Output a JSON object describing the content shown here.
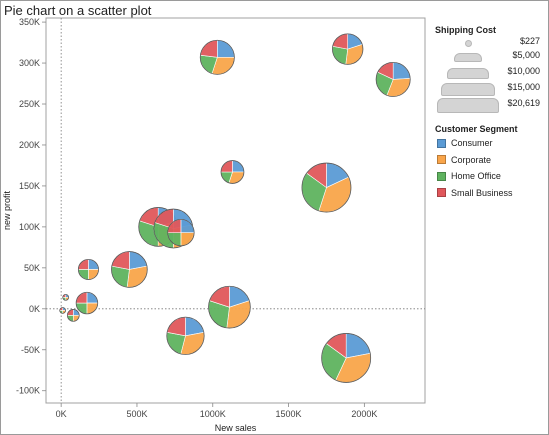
{
  "title": "Pie chart on a scatter plot",
  "chart_data": {
    "type": "scatter",
    "subtype": "pie-markers",
    "xlabel": "New sales",
    "ylabel": "new profit",
    "xlim": [
      -100000,
      2400000
    ],
    "ylim": [
      -115000,
      355000
    ],
    "xticks": [
      0,
      500000,
      1000000,
      1500000,
      2000000
    ],
    "xtick_labels": [
      "0K",
      "500K",
      "1000K",
      "1500K",
      "2000K"
    ],
    "yticks": [
      -100000,
      -50000,
      0,
      50000,
      100000,
      150000,
      200000,
      250000,
      300000,
      350000
    ],
    "ytick_labels": [
      "-100K",
      "-50K",
      "0K",
      "50K",
      "100K",
      "150K",
      "200K",
      "250K",
      "300K",
      "350K"
    ],
    "reference_lines": {
      "x": 0,
      "y": 0,
      "style": "dotted"
    },
    "grid": false,
    "slice_order": [
      "Consumer",
      "Corporate",
      "Home Office",
      "Small Business"
    ],
    "points": [
      {
        "x": 1030000,
        "y": 307000,
        "size": 10000,
        "shares": [
          0.25,
          0.3,
          0.22,
          0.23
        ]
      },
      {
        "x": 1890000,
        "y": 317000,
        "size": 8000,
        "shares": [
          0.2,
          0.32,
          0.26,
          0.22
        ]
      },
      {
        "x": 2190000,
        "y": 280000,
        "size": 10000,
        "shares": [
          0.24,
          0.32,
          0.26,
          0.18
        ]
      },
      {
        "x": 1130000,
        "y": 167000,
        "size": 4500,
        "shares": [
          0.25,
          0.3,
          0.2,
          0.25
        ]
      },
      {
        "x": 1750000,
        "y": 148000,
        "size": 20619,
        "shares": [
          0.18,
          0.37,
          0.3,
          0.15
        ]
      },
      {
        "x": 640000,
        "y": 100000,
        "size": 13000,
        "shares": [
          0.2,
          0.3,
          0.3,
          0.2
        ]
      },
      {
        "x": 740000,
        "y": 98000,
        "size": 13000,
        "shares": [
          0.22,
          0.28,
          0.3,
          0.2
        ]
      },
      {
        "x": 790000,
        "y": 93000,
        "size": 6000,
        "shares": [
          0.25,
          0.25,
          0.25,
          0.25
        ]
      },
      {
        "x": 450000,
        "y": 48000,
        "size": 11000,
        "shares": [
          0.22,
          0.3,
          0.26,
          0.22
        ]
      },
      {
        "x": 180000,
        "y": 48000,
        "size": 3500,
        "shares": [
          0.25,
          0.25,
          0.25,
          0.25
        ]
      },
      {
        "x": 170000,
        "y": 7000,
        "size": 4000,
        "shares": [
          0.25,
          0.25,
          0.25,
          0.25
        ]
      },
      {
        "x": 30000,
        "y": 14000,
        "size": 300,
        "shares": [
          0.25,
          0.25,
          0.25,
          0.25
        ]
      },
      {
        "x": 10000,
        "y": -2000,
        "size": 300,
        "shares": [
          0.25,
          0.25,
          0.25,
          0.25
        ]
      },
      {
        "x": 80000,
        "y": -8000,
        "size": 1200,
        "shares": [
          0.25,
          0.25,
          0.25,
          0.25
        ]
      },
      {
        "x": 1110000,
        "y": 2000,
        "size": 15000,
        "shares": [
          0.2,
          0.32,
          0.28,
          0.2
        ]
      },
      {
        "x": 820000,
        "y": -33000,
        "size": 12000,
        "shares": [
          0.22,
          0.32,
          0.24,
          0.22
        ]
      },
      {
        "x": 1880000,
        "y": -60000,
        "size": 20619,
        "shares": [
          0.22,
          0.35,
          0.28,
          0.15
        ]
      }
    ]
  },
  "size_legend": {
    "title": "Shipping Cost",
    "items": [
      {
        "label": "$227",
        "value": 227
      },
      {
        "label": "$5,000",
        "value": 5000
      },
      {
        "label": "$10,000",
        "value": 10000
      },
      {
        "label": "$15,000",
        "value": 15000
      },
      {
        "label": "$20,619",
        "value": 20619
      }
    ]
  },
  "color_legend": {
    "title": "Customer Segment",
    "items": [
      {
        "label": "Consumer",
        "color": "#5b9bd5"
      },
      {
        "label": "Corporate",
        "color": "#f9a54a"
      },
      {
        "label": "Home Office",
        "color": "#5fb35f"
      },
      {
        "label": "Small Business",
        "color": "#e0575b"
      }
    ]
  }
}
